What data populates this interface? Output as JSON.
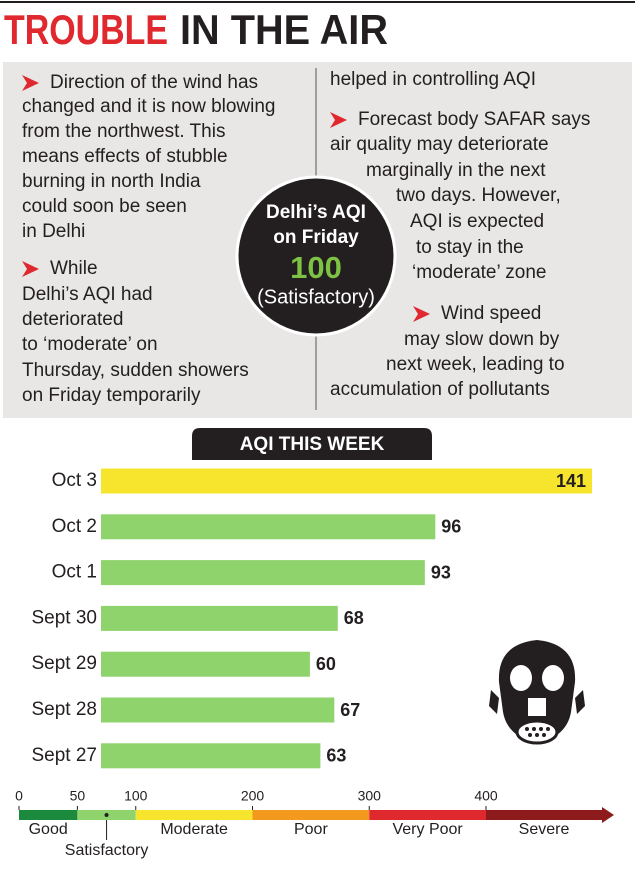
{
  "header": {
    "title_highlight": "TROUBLE",
    "title_rest": "IN THE AIR"
  },
  "notes": {
    "left": [
      "Direction of the wind has",
      "changed and it is now blowing",
      "from the northwest. This",
      "means effects of stubble",
      "burning in north India",
      "could soon be seen",
      "in Delhi",
      "While",
      "Delhi’s AQI had",
      "deteriorated",
      "to ‘moderate’ on",
      "Thursday, sudden showers",
      "on Friday temporarily"
    ],
    "right": [
      "helped in controlling AQI",
      "Forecast body SAFAR says",
      "air quality may deteriorate",
      "marginally in the next",
      "two days. However,",
      "AQI is expected",
      "to stay in the",
      "‘moderate’ zone",
      "Wind speed",
      "may slow down by",
      "next week, leading to",
      "accumulation of pollutants"
    ]
  },
  "callout": {
    "line1": "Delhi’s AQI",
    "line2": "on Friday",
    "value": "100",
    "status": "(Satisfactory)"
  },
  "chart_data": {
    "type": "bar",
    "orientation": "horizontal",
    "title": "AQI THIS WEEK",
    "categories": [
      "Oct 3",
      "Oct 2",
      "Oct 1",
      "Sept 30",
      "Sept 29",
      "Sept 28",
      "Sept 27"
    ],
    "values": [
      141,
      96,
      93,
      68,
      60,
      67,
      63
    ],
    "colors": [
      "#f6e52c",
      "#8fd36c",
      "#8fd36c",
      "#8fd36c",
      "#8fd36c",
      "#8fd36c",
      "#8fd36c"
    ],
    "xlim": [
      0,
      141
    ]
  },
  "aqi_scale": {
    "ticks": [
      0,
      50,
      100,
      200,
      300,
      400
    ],
    "bands": [
      {
        "label": "Good",
        "from": 0,
        "to": 50,
        "color": "#1b8a3c"
      },
      {
        "label": "Satisfactory",
        "from": 50,
        "to": 100,
        "color": "#8fd36c"
      },
      {
        "label": "Moderate",
        "from": 100,
        "to": 200,
        "color": "#f6e52c"
      },
      {
        "label": "Poor",
        "from": 200,
        "to": 300,
        "color": "#f39a1e"
      },
      {
        "label": "Very Poor",
        "from": 300,
        "to": 400,
        "color": "#e0282f"
      },
      {
        "label": "Severe",
        "from": 400,
        "to": null,
        "color": "#8e1b1b"
      }
    ]
  }
}
